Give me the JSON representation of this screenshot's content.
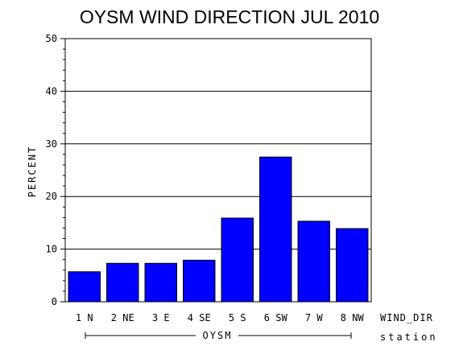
{
  "chart_data": {
    "type": "bar",
    "title": "OYSM WIND DIRECTION JUL 2010",
    "ylabel": "PERCENT",
    "xlabel": "WIND_DIR",
    "group_axis_label": "station",
    "group_label": "OYSM",
    "categories": [
      "1 N",
      "2 NE",
      "3 E",
      "4 SE",
      "5 S",
      "6 SW",
      "7 W",
      "8 NW"
    ],
    "values": [
      5.7,
      7.3,
      7.3,
      7.9,
      15.9,
      27.5,
      15.3,
      13.9
    ],
    "ylim": [
      0,
      50
    ],
    "yticks": [
      0,
      10,
      20,
      30,
      40,
      50
    ],
    "grid": true,
    "bar_color": "#0000ff"
  }
}
